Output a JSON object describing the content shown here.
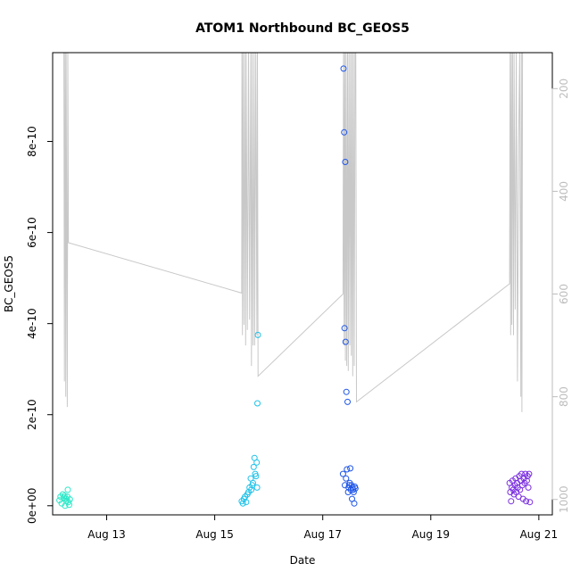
{
  "chart_data": {
    "type": "scatter",
    "title": "ATOM1 Northbound BC_GEOS5",
    "xlabel": "Date",
    "ylabel": "BC_GEOS5",
    "xlim": [
      "2016-08-12T00:00",
      "2016-08-21T06:00"
    ],
    "ylim": [
      -2e-11,
      9.95e-10
    ],
    "x_ticks": [
      {
        "value": "2016-08-13T00:00",
        "label": "Aug 13"
      },
      {
        "value": "2016-08-15T00:00",
        "label": "Aug 15"
      },
      {
        "value": "2016-08-17T00:00",
        "label": "Aug 17"
      },
      {
        "value": "2016-08-19T00:00",
        "label": "Aug 19"
      },
      {
        "value": "2016-08-21T00:00",
        "label": "Aug 21"
      }
    ],
    "y_ticks": [
      {
        "value": 0,
        "label": "0e+00"
      },
      {
        "value": 2e-10,
        "label": "2e-10"
      },
      {
        "value": 4e-10,
        "label": "4e-10"
      },
      {
        "value": 6e-10,
        "label": "6e-10"
      },
      {
        "value": 8e-10,
        "label": "8e-10"
      }
    ],
    "y2_reversed": true,
    "y2lim": [
      1030,
      130
    ],
    "y2_ticks": [
      {
        "value": 200,
        "label": "200"
      },
      {
        "value": 400,
        "label": "400"
      },
      {
        "value": 600,
        "label": "600"
      },
      {
        "value": 800,
        "label": "800"
      },
      {
        "value": 1000,
        "label": "1000"
      }
    ],
    "grid": false,
    "colors": {
      "pressure_line": "#c8c8c8",
      "right_axis": "#bdbdbd"
    },
    "pressure_series": [
      [
        "2016-08-12T05:00",
        130
      ],
      [
        "2016-08-12T05:15",
        770
      ],
      [
        "2016-08-12T05:30",
        130
      ],
      [
        "2016-08-12T05:50",
        800
      ],
      [
        "2016-08-12T06:00",
        130
      ],
      [
        "2016-08-12T06:30",
        820
      ],
      [
        "2016-08-12T06:45",
        130
      ],
      [
        "2016-08-12T07:00",
        500
      ],
      [
        "2016-08-15T12:00",
        598
      ],
      [
        "2016-08-15T12:05",
        130
      ],
      [
        "2016-08-15T12:20",
        680
      ],
      [
        "2016-08-15T12:35",
        130
      ],
      [
        "2016-08-15T13:00",
        660
      ],
      [
        "2016-08-15T13:20",
        130
      ],
      [
        "2016-08-15T13:45",
        700
      ],
      [
        "2016-08-15T14:00",
        130
      ],
      [
        "2016-08-15T14:30",
        670
      ],
      [
        "2016-08-15T15:00",
        130
      ],
      [
        "2016-08-15T15:30",
        650
      ],
      [
        "2016-08-15T16:00",
        130
      ],
      [
        "2016-08-15T16:20",
        740
      ],
      [
        "2016-08-15T16:40",
        130
      ],
      [
        "2016-08-15T17:00",
        700
      ],
      [
        "2016-08-15T17:30",
        130
      ],
      [
        "2016-08-15T17:45",
        700
      ],
      [
        "2016-08-15T18:15",
        130
      ],
      [
        "2016-08-15T18:45",
        680
      ],
      [
        "2016-08-15T19:00",
        130
      ],
      [
        "2016-08-15T19:15",
        760
      ],
      [
        "2016-08-17T09:00",
        600
      ],
      [
        "2016-08-17T09:15",
        130
      ],
      [
        "2016-08-17T09:30",
        700
      ],
      [
        "2016-08-17T09:45",
        130
      ],
      [
        "2016-08-17T10:05",
        730
      ],
      [
        "2016-08-17T10:20",
        130
      ],
      [
        "2016-08-17T10:40",
        740
      ],
      [
        "2016-08-17T11:00",
        130
      ],
      [
        "2016-08-17T11:20",
        750
      ],
      [
        "2016-08-17T11:40",
        130
      ],
      [
        "2016-08-17T12:00",
        700
      ],
      [
        "2016-08-17T12:20",
        130
      ],
      [
        "2016-08-17T12:40",
        720
      ],
      [
        "2016-08-17T13:00",
        130
      ],
      [
        "2016-08-17T13:20",
        760
      ],
      [
        "2016-08-17T13:40",
        130
      ],
      [
        "2016-08-17T14:00",
        740
      ],
      [
        "2016-08-17T14:20",
        130
      ],
      [
        "2016-08-17T14:40",
        130
      ],
      [
        "2016-08-17T15:00",
        810
      ],
      [
        "2016-08-20T11:00",
        580
      ],
      [
        "2016-08-20T11:15",
        130
      ],
      [
        "2016-08-20T11:30",
        680
      ],
      [
        "2016-08-20T11:45",
        130
      ],
      [
        "2016-08-20T12:00",
        660
      ],
      [
        "2016-08-20T12:20",
        130
      ],
      [
        "2016-08-20T12:45",
        680
      ],
      [
        "2016-08-20T13:00",
        130
      ],
      [
        "2016-08-20T13:30",
        630
      ],
      [
        "2016-08-20T14:00",
        130
      ],
      [
        "2016-08-20T14:30",
        770
      ],
      [
        "2016-08-20T15:00",
        310
      ],
      [
        "2016-08-20T15:30",
        130
      ],
      [
        "2016-08-20T16:00",
        800
      ],
      [
        "2016-08-20T16:15",
        130
      ],
      [
        "2016-08-20T16:30",
        830
      ],
      [
        "2016-08-20T16:45",
        130
      ]
    ],
    "point_groups": [
      {
        "color": "#2de8c8",
        "points": [
          [
            "2016-08-12T03:00",
            1.2e-11
          ],
          [
            "2016-08-12T03:30",
            2e-11
          ],
          [
            "2016-08-12T04:00",
            5e-12
          ],
          [
            "2016-08-12T04:30",
            2.5e-11
          ],
          [
            "2016-08-12T05:00",
            1.8e-11
          ],
          [
            "2016-08-12T05:15",
            2.2e-11
          ],
          [
            "2016-08-12T05:30",
            0.0
          ],
          [
            "2016-08-12T06:00",
            1.5e-11
          ],
          [
            "2016-08-12T06:15",
            1e-11
          ],
          [
            "2016-08-12T06:30",
            2e-11
          ],
          [
            "2016-08-12T06:45",
            3.5e-11
          ],
          [
            "2016-08-12T07:00",
            8e-12
          ],
          [
            "2016-08-12T07:20",
            2e-12
          ],
          [
            "2016-08-12T07:40",
            1.4e-11
          ]
        ]
      },
      {
        "color": "#1ec2e8",
        "points": [
          [
            "2016-08-15T12:00",
            1e-11
          ],
          [
            "2016-08-15T12:30",
            5e-12
          ],
          [
            "2016-08-15T13:00",
            1.5e-11
          ],
          [
            "2016-08-15T13:30",
            2e-11
          ],
          [
            "2016-08-15T14:00",
            8e-12
          ],
          [
            "2016-08-15T14:30",
            2.5e-11
          ],
          [
            "2016-08-15T15:00",
            3e-11
          ],
          [
            "2016-08-15T15:30",
            4e-11
          ],
          [
            "2016-08-15T16:00",
            6e-11
          ],
          [
            "2016-08-15T16:15",
            3.5e-11
          ],
          [
            "2016-08-15T16:40",
            4.5e-11
          ],
          [
            "2016-08-15T17:00",
            5e-11
          ],
          [
            "2016-08-15T17:20",
            8.5e-11
          ],
          [
            "2016-08-15T17:40",
            1.05e-10
          ],
          [
            "2016-08-15T18:00",
            7e-11
          ],
          [
            "2016-08-15T18:20",
            6.5e-11
          ],
          [
            "2016-08-15T18:40",
            9.5e-11
          ],
          [
            "2016-08-15T18:50",
            4e-11
          ],
          [
            "2016-08-15T19:00",
            2.25e-10
          ],
          [
            "2016-08-15T19:10",
            3.75e-10
          ]
        ]
      },
      {
        "color": "#1e56e8",
        "points": [
          [
            "2016-08-17T09:00",
            7e-11
          ],
          [
            "2016-08-17T09:15",
            9.6e-10
          ],
          [
            "2016-08-17T09:30",
            8.2e-10
          ],
          [
            "2016-08-17T09:40",
            3.9e-10
          ],
          [
            "2016-08-17T09:50",
            4.5e-11
          ],
          [
            "2016-08-17T10:00",
            7.55e-10
          ],
          [
            "2016-08-17T10:10",
            3.6e-10
          ],
          [
            "2016-08-17T10:20",
            6e-11
          ],
          [
            "2016-08-17T10:30",
            2.5e-10
          ],
          [
            "2016-08-17T10:45",
            8e-11
          ],
          [
            "2016-08-17T11:00",
            2.28e-10
          ],
          [
            "2016-08-17T11:15",
            3e-11
          ],
          [
            "2016-08-17T11:30",
            4e-11
          ],
          [
            "2016-08-17T11:45",
            4.5e-11
          ],
          [
            "2016-08-17T12:00",
            5e-11
          ],
          [
            "2016-08-17T12:15",
            8.2e-11
          ],
          [
            "2016-08-17T12:30",
            3.5e-11
          ],
          [
            "2016-08-17T12:45",
            4.5e-11
          ],
          [
            "2016-08-17T13:00",
            1.5e-11
          ],
          [
            "2016-08-17T13:15",
            4e-11
          ],
          [
            "2016-08-17T13:30",
            3.5e-11
          ],
          [
            "2016-08-17T13:45",
            3e-11
          ],
          [
            "2016-08-17T14:00",
            5e-12
          ],
          [
            "2016-08-17T14:15",
            4.2e-11
          ],
          [
            "2016-08-17T14:30",
            3.8e-11
          ]
        ]
      },
      {
        "color": "#7a2ee0",
        "points": [
          [
            "2016-08-20T11:00",
            5e-11
          ],
          [
            "2016-08-20T11:20",
            3e-11
          ],
          [
            "2016-08-20T11:40",
            1e-11
          ],
          [
            "2016-08-20T12:00",
            4e-11
          ],
          [
            "2016-08-20T12:20",
            5.5e-11
          ],
          [
            "2016-08-20T12:40",
            3.5e-11
          ],
          [
            "2016-08-20T13:00",
            2.5e-11
          ],
          [
            "2016-08-20T13:20",
            4.5e-11
          ],
          [
            "2016-08-20T13:40",
            6e-11
          ],
          [
            "2016-08-20T14:00",
            3e-11
          ],
          [
            "2016-08-20T14:20",
            5e-11
          ],
          [
            "2016-08-20T14:40",
            4e-11
          ],
          [
            "2016-08-20T15:00",
            2e-11
          ],
          [
            "2016-08-20T15:20",
            6.5e-11
          ],
          [
            "2016-08-20T15:40",
            3.5e-11
          ],
          [
            "2016-08-20T16:00",
            5.5e-11
          ],
          [
            "2016-08-20T16:20",
            7e-11
          ],
          [
            "2016-08-20T16:40",
            4.5e-11
          ],
          [
            "2016-08-20T17:00",
            1.5e-11
          ],
          [
            "2016-08-20T17:20",
            6e-11
          ],
          [
            "2016-08-20T17:40",
            5e-11
          ],
          [
            "2016-08-20T18:00",
            7e-11
          ],
          [
            "2016-08-20T18:20",
            1e-11
          ],
          [
            "2016-08-20T18:40",
            5.5e-11
          ],
          [
            "2016-08-20T19:00",
            6.5e-11
          ],
          [
            "2016-08-20T19:20",
            4e-11
          ],
          [
            "2016-08-20T19:40",
            7e-11
          ],
          [
            "2016-08-20T20:00",
            8e-12
          ]
        ]
      }
    ]
  }
}
